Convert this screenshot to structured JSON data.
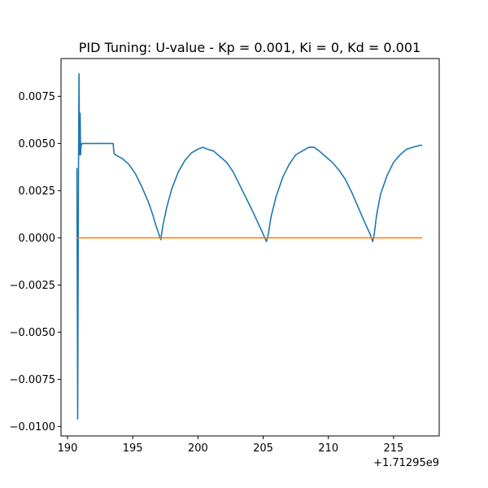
{
  "chart_data": {
    "type": "line",
    "title": "PID Tuning: U-value - Kp = 0.001, Ki = 0, Kd = 0.001",
    "xlabel": "",
    "ylabel": "",
    "x_offset_label": "+1.71295e9",
    "xlim": [
      189.5,
      218.5
    ],
    "ylim": [
      -0.0105,
      0.0095
    ],
    "x_ticks": [
      190,
      195,
      200,
      205,
      210,
      215
    ],
    "x_tick_labels": [
      "190",
      "195",
      "200",
      "205",
      "210",
      "215"
    ],
    "y_ticks": [
      0.0075,
      0.005,
      0.0025,
      0.0,
      -0.0025,
      -0.005,
      -0.0075,
      -0.01
    ],
    "y_tick_labels": [
      "0.0075",
      "0.0050",
      "0.0025",
      "0.0000",
      "−0.0025",
      "−0.0050",
      "−0.0075",
      "−0.0100"
    ],
    "grid": false,
    "legend": "none",
    "series": [
      {
        "color": "#1f77b4",
        "x": [
          190.72,
          190.78,
          190.84,
          190.88,
          190.92,
          190.97,
          191.0,
          191.03,
          191.06,
          191.1,
          191.3,
          191.6,
          192.0,
          192.5,
          193.0,
          193.5,
          193.56,
          193.65,
          194.2,
          194.7,
          195.2,
          195.7,
          196.2,
          196.5,
          196.8,
          197.0,
          197.15,
          197.3,
          197.6,
          198.0,
          198.5,
          199.0,
          199.5,
          200.0,
          200.4,
          200.7,
          201.2,
          201.7,
          202.2,
          202.7,
          203.2,
          203.7,
          204.2,
          204.6,
          205.0,
          205.25,
          205.4,
          205.6,
          206.0,
          206.5,
          207.0,
          207.5,
          208.0,
          208.5,
          208.9,
          209.3,
          209.8,
          210.3,
          210.8,
          211.3,
          211.8,
          212.3,
          212.8,
          213.2,
          213.4,
          213.5,
          213.7,
          214.0,
          214.5,
          215.0,
          215.5,
          216.0,
          216.5,
          217.0,
          217.2
        ],
        "y": [
          0.0037,
          -0.0096,
          0.0035,
          0.0087,
          0.0044,
          0.0066,
          0.0044,
          0.0048,
          0.0049,
          0.005,
          0.005,
          0.005,
          0.005,
          0.005,
          0.005,
          0.005,
          0.0045,
          0.0044,
          0.0042,
          0.0039,
          0.0034,
          0.0027,
          0.0019,
          0.0013,
          0.0006,
          0.0002,
          -0.0001,
          0.0006,
          0.0016,
          0.0026,
          0.0035,
          0.0041,
          0.0045,
          0.0047,
          0.0048,
          0.0047,
          0.0046,
          0.0043,
          0.004,
          0.0035,
          0.0028,
          0.0021,
          0.0014,
          0.0008,
          0.0002,
          -0.0002,
          0.0002,
          0.0011,
          0.0022,
          0.0032,
          0.0039,
          0.0044,
          0.0046,
          0.0048,
          0.0048,
          0.0046,
          0.0043,
          0.004,
          0.0036,
          0.0031,
          0.0024,
          0.0016,
          0.0008,
          0.0002,
          -0.0002,
          0.0001,
          0.0012,
          0.0023,
          0.0033,
          0.004,
          0.0044,
          0.0047,
          0.0048,
          0.0049,
          0.0049
        ]
      },
      {
        "color": "#ff7f0e",
        "x": [
          190.72,
          217.2
        ],
        "y": [
          0.0,
          0.0
        ]
      }
    ]
  }
}
